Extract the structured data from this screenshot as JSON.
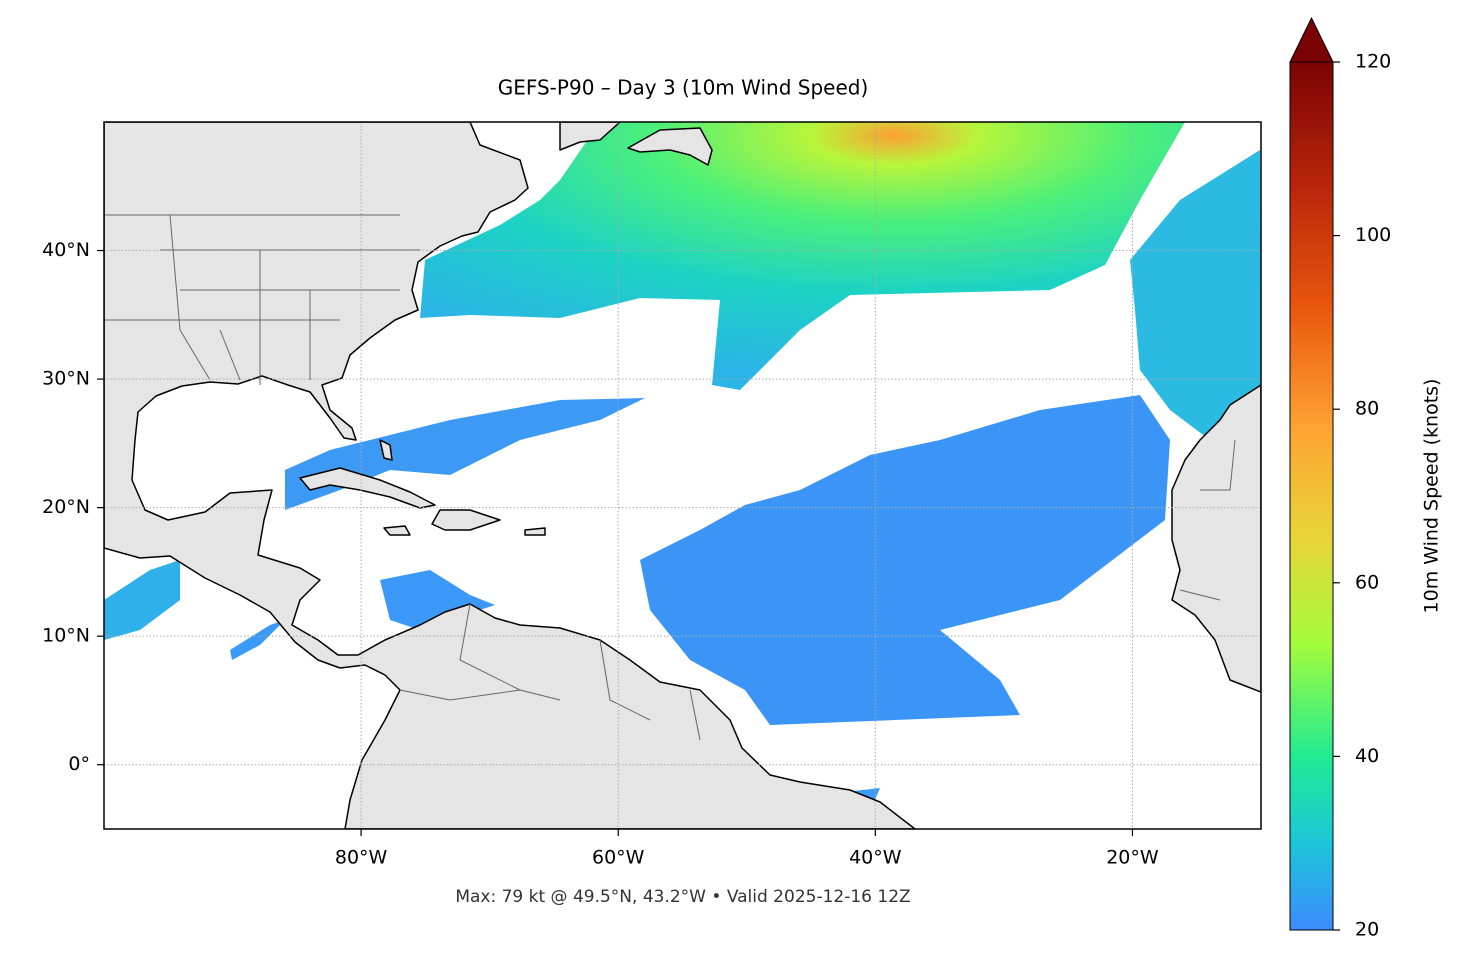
{
  "map": {
    "title": "GEFS-P90 – Day 3 (10m Wind Speed)",
    "caption": "Max: 79 kt @ 49.5°N, 43.2°W • Valid 2025-12-16 12Z",
    "xlim": [
      -100,
      -10
    ],
    "ylim": [
      -5,
      50
    ],
    "xticks": [
      {
        "value": -80,
        "label": "80°W"
      },
      {
        "value": -60,
        "label": "60°W"
      },
      {
        "value": -40,
        "label": "40°W"
      },
      {
        "value": -20,
        "label": "20°W"
      }
    ],
    "yticks": [
      {
        "value": 0,
        "label": "0°"
      },
      {
        "value": 10,
        "label": "10°N"
      },
      {
        "value": 20,
        "label": "20°N"
      },
      {
        "value": 30,
        "label": "30°N"
      },
      {
        "value": 40,
        "label": "40°N"
      }
    ],
    "grid": true,
    "colorbar": {
      "label": "10m Wind Speed (knots)",
      "clim": [
        20,
        120
      ],
      "ticks": [
        20,
        40,
        60,
        80,
        100,
        120
      ]
    }
  }
}
